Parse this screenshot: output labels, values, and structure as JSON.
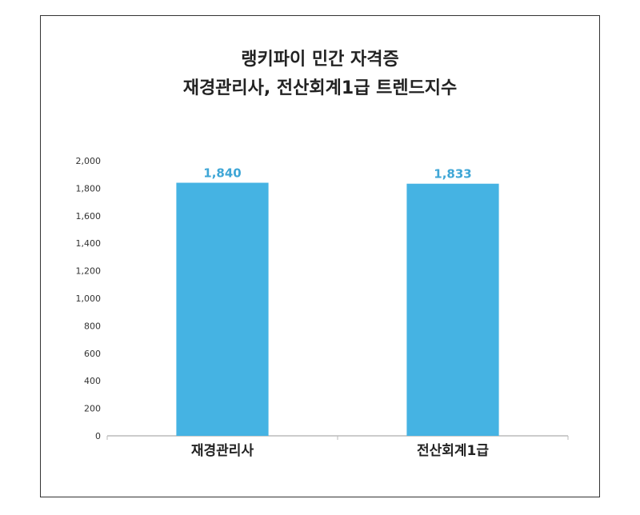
{
  "chart_data": {
    "type": "bar",
    "title_lines": [
      "랭키파이 민간 자격증",
      "재경관리사, 전산회계1급 트렌드지수"
    ],
    "categories": [
      "재경관리사",
      "전산회계1급"
    ],
    "values": [
      1840,
      1833
    ],
    "data_labels": [
      "1,840",
      "1,833"
    ],
    "ylim": [
      0,
      2000
    ],
    "y_ticks": [
      0,
      200,
      400,
      600,
      800,
      1000,
      1200,
      1400,
      1600,
      1800,
      2000
    ],
    "y_tick_labels": [
      "0",
      "200",
      "400",
      "600",
      "800",
      "1,000",
      "1,200",
      "1,400",
      "1,600",
      "1,800",
      "2,000"
    ],
    "grid": false,
    "legend": "none",
    "bar_color": "#45b3e3",
    "label_color": "#3ea6d6"
  }
}
